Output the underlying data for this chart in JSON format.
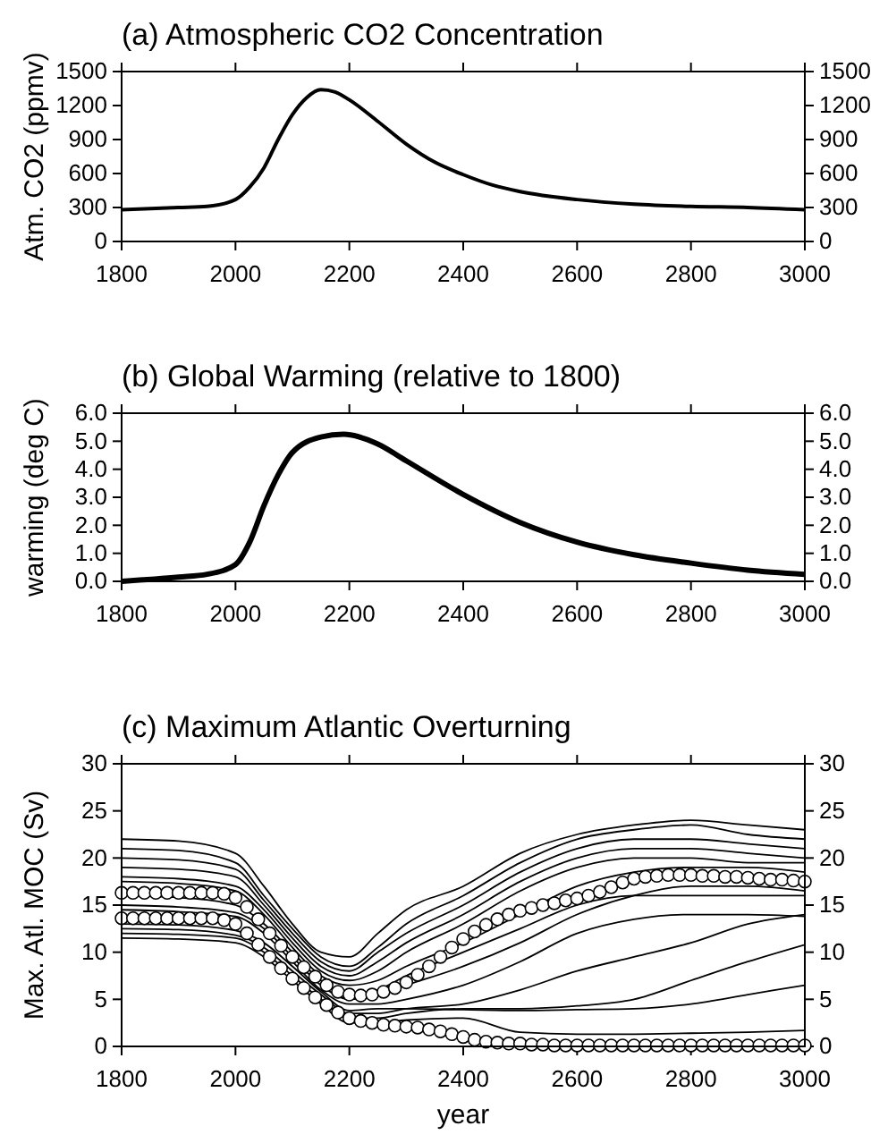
{
  "chart_data": [
    {
      "type": "line",
      "title": "(a) Atmospheric CO2 Concentration",
      "ylabel": "Atm. CO2 (ppmv)",
      "x": [
        1800,
        1900,
        1950,
        2000,
        2025,
        2050,
        2075,
        2100,
        2125,
        2150,
        2175,
        2200,
        2250,
        2300,
        2350,
        2400,
        2450,
        2500,
        2600,
        2700,
        2800,
        2900,
        3000
      ],
      "series": [
        {
          "color": "#000000",
          "values": [
            280,
            300,
            310,
            370,
            480,
            650,
            900,
            1120,
            1270,
            1340,
            1320,
            1250,
            1060,
            860,
            700,
            590,
            500,
            440,
            370,
            330,
            310,
            300,
            280
          ]
        }
      ],
      "xlim": [
        1800,
        3000
      ],
      "xticks": [
        1800,
        2000,
        2200,
        2400,
        2600,
        2800,
        3000
      ],
      "ylim": [
        0,
        1500
      ],
      "yticks": [
        0,
        300,
        600,
        900,
        1200,
        1500
      ],
      "y2lim": [
        0,
        1500
      ],
      "y2ticks": [
        0,
        300,
        600,
        900,
        1200,
        1500
      ],
      "grid": false
    },
    {
      "type": "line",
      "title": "(b) Global Warming (relative to 1800)",
      "ylabel": "warming (deg C)",
      "x": [
        1800,
        1900,
        1950,
        2000,
        2025,
        2050,
        2075,
        2100,
        2150,
        2190,
        2250,
        2300,
        2400,
        2500,
        2600,
        2700,
        2800,
        2900,
        3000
      ],
      "series": [
        {
          "color": "#000000",
          "values": [
            0,
            0.15,
            0.25,
            0.6,
            1.4,
            2.7,
            3.8,
            4.6,
            5.15,
            5.25,
            4.9,
            4.3,
            3.1,
            2.1,
            1.4,
            0.95,
            0.65,
            0.4,
            0.25
          ]
        }
      ],
      "xlim": [
        1800,
        3000
      ],
      "xticks": [
        1800,
        2000,
        2200,
        2400,
        2600,
        2800,
        3000
      ],
      "ylim": [
        0,
        6
      ],
      "yticks": [
        {
          "value": 0,
          "label": "0.0"
        },
        {
          "value": 1,
          "label": "1.0"
        },
        {
          "value": 2,
          "label": "2.0"
        },
        {
          "value": 3,
          "label": "3.0"
        },
        {
          "value": 4,
          "label": "4.0"
        },
        {
          "value": 5,
          "label": "5.0"
        },
        {
          "value": 6,
          "label": "6.0"
        }
      ],
      "y2lim": [
        0,
        6
      ],
      "y2ticks": [
        {
          "value": 0,
          "label": "0.0"
        },
        {
          "value": 1,
          "label": "1.0"
        },
        {
          "value": 2,
          "label": "2.0"
        },
        {
          "value": 3,
          "label": "3.0"
        },
        {
          "value": 4,
          "label": "4.0"
        },
        {
          "value": 5,
          "label": "5.0"
        },
        {
          "value": 6,
          "label": "6.0"
        }
      ],
      "grid": false
    },
    {
      "type": "line",
      "title": "(c) Maximum Atlantic Overturning",
      "ylabel": "Max. Atl. MOC (Sv)",
      "xlabel": "year",
      "series": [
        {
          "color": "#000000",
          "x": [
            1800,
            1900,
            2000,
            2050,
            2100,
            2150,
            2200,
            2250,
            2300,
            2400,
            2500,
            2600,
            2700,
            2800,
            2900,
            3000
          ],
          "values": [
            22,
            21.8,
            20.5,
            17,
            13,
            10,
            9.5,
            12,
            14.5,
            17,
            20.5,
            22.5,
            23.5,
            24,
            23.5,
            23
          ]
        },
        {
          "color": "#000000",
          "x": [
            1800,
            1900,
            2000,
            2050,
            2100,
            2150,
            2200,
            2250,
            2300,
            2400,
            2500,
            2600,
            2700,
            2800,
            2900,
            3000
          ],
          "values": [
            21,
            20.8,
            19.5,
            16,
            12.5,
            9.5,
            8.5,
            10.5,
            13,
            16,
            19.5,
            22,
            23,
            23.5,
            22.5,
            22
          ]
        },
        {
          "color": "#000000",
          "x": [
            1800,
            1900,
            2000,
            2050,
            2100,
            2150,
            2200,
            2250,
            2300,
            2400,
            2500,
            2600,
            2700,
            2800,
            2900,
            3000
          ],
          "values": [
            20,
            19.8,
            18.8,
            15.5,
            12,
            9,
            8,
            10,
            12,
            15,
            18.5,
            21,
            22,
            22,
            21.5,
            21
          ]
        },
        {
          "color": "#000000",
          "x": [
            1800,
            1900,
            2000,
            2050,
            2100,
            2150,
            2200,
            2250,
            2300,
            2400,
            2500,
            2600,
            2700,
            2800,
            2900,
            3000
          ],
          "values": [
            19,
            18.8,
            18,
            15,
            11.5,
            8.5,
            7.5,
            9,
            11,
            14,
            17.5,
            20,
            21,
            21,
            20.5,
            20
          ]
        },
        {
          "color": "#000000",
          "x": [
            1800,
            1900,
            2000,
            2050,
            2100,
            2150,
            2200,
            2250,
            2300,
            2400,
            2500,
            2600,
            2700,
            2800,
            2900,
            3000
          ],
          "values": [
            18,
            17.8,
            17,
            14.5,
            11,
            8,
            7,
            8,
            10,
            13,
            16.5,
            19,
            20,
            20,
            19.5,
            19.5
          ]
        },
        {
          "color": "#000000",
          "x": [
            1800,
            1900,
            2000,
            2050,
            2100,
            2150,
            2200,
            2250,
            2300,
            2400,
            2500,
            2600,
            2700,
            2800,
            2900,
            3000
          ],
          "values": [
            17.5,
            17.3,
            16.5,
            14,
            10.5,
            7.5,
            6.5,
            7,
            8.5,
            11,
            14,
            17,
            18.5,
            19,
            19,
            18.5
          ]
        },
        {
          "color": "#000000",
          "x": [
            1800,
            1900,
            2000,
            2050,
            2100,
            2150,
            2200,
            2250,
            2300,
            2400,
            2500,
            2600,
            2700,
            2800,
            2900,
            3000
          ],
          "values": [
            16,
            15.8,
            15,
            13,
            10,
            7,
            5.5,
            6,
            7.5,
            10,
            12.5,
            15,
            16,
            16,
            16,
            16
          ]
        },
        {
          "color": "#000000",
          "x": [
            1800,
            1900,
            2000,
            2050,
            2100,
            2150,
            2200,
            2250,
            2300,
            2400,
            2500,
            2600,
            2700,
            2800,
            2900,
            3000
          ],
          "values": [
            15,
            14.8,
            14.2,
            12.5,
            9.5,
            6.5,
            5,
            5.5,
            6.5,
            8.5,
            11,
            14,
            16,
            17,
            17,
            16.5
          ]
        },
        {
          "color": "#000000",
          "x": [
            1800,
            1900,
            2000,
            2050,
            2100,
            2150,
            2200,
            2250,
            2300,
            2400,
            2500,
            2600,
            2700,
            2800,
            2900,
            3000
          ],
          "values": [
            14.5,
            14.3,
            13.8,
            12,
            9,
            6,
            4.5,
            4.5,
            5,
            6.5,
            9,
            12,
            13.5,
            14,
            14,
            13.8
          ]
        },
        {
          "color": "#000000",
          "x": [
            1800,
            1900,
            2000,
            2050,
            2100,
            2150,
            2200,
            2250,
            2300,
            2400,
            2500,
            2600,
            2700,
            2800,
            2900,
            3000
          ],
          "values": [
            13,
            12.9,
            12.3,
            11,
            8.5,
            5.8,
            3.8,
            4,
            4,
            3.9,
            3.8,
            3.9,
            4,
            4.5,
            5.5,
            6.5
          ]
        },
        {
          "color": "#000000",
          "x": [
            1800,
            1900,
            2000,
            2050,
            2100,
            2150,
            2200,
            2250,
            2300,
            2400,
            2500,
            2600,
            2700,
            2800,
            2900,
            3000
          ],
          "values": [
            12.5,
            12.4,
            11.8,
            10.5,
            8,
            5.5,
            3.5,
            3.5,
            4,
            4.5,
            6,
            8,
            9.5,
            11,
            13,
            14
          ]
        },
        {
          "color": "#000000",
          "x": [
            1800,
            1900,
            2000,
            2050,
            2100,
            2150,
            2200,
            2250,
            2300,
            2400,
            2500,
            2600,
            2700,
            2800,
            2900,
            3000
          ],
          "values": [
            12,
            11.9,
            11.5,
            10,
            7.5,
            5,
            3,
            3,
            3.5,
            4,
            4,
            4.3,
            5,
            7,
            9,
            10.8
          ]
        },
        {
          "color": "#000000",
          "x": [
            1800,
            1900,
            2000,
            2050,
            2100,
            2150,
            2200,
            2250,
            2300,
            2400,
            2500,
            2600,
            2700,
            2800,
            2900,
            3000
          ],
          "values": [
            11.5,
            11.4,
            11,
            9.5,
            7,
            4.5,
            2.5,
            2.5,
            2.8,
            3,
            1.5,
            1.3,
            1.3,
            1.4,
            1.5,
            1.7
          ]
        },
        {
          "type": "scatter",
          "marker": "circle",
          "color": "#ffffff",
          "x": [
            1800,
            1820,
            1840,
            1860,
            1880,
            1900,
            1920,
            1940,
            1960,
            1980,
            2000,
            2020,
            2040,
            2060,
            2080,
            2100,
            2120,
            2140,
            2160,
            2180,
            2200,
            2220,
            2240,
            2260,
            2280,
            2300,
            2320,
            2340,
            2360,
            2380,
            2400,
            2420,
            2440,
            2460,
            2480,
            2500,
            2520,
            2540,
            2560,
            2580,
            2600,
            2620,
            2640,
            2660,
            2680,
            2700,
            2720,
            2740,
            2760,
            2780,
            2800,
            2820,
            2840,
            2860,
            2880,
            2900,
            2920,
            2940,
            2960,
            2980,
            3000
          ],
          "values": [
            16.3,
            16.3,
            16.3,
            16.3,
            16.3,
            16.3,
            16.3,
            16.3,
            16.3,
            16.2,
            15.8,
            14.8,
            13.5,
            12.0,
            10.7,
            9.5,
            8.4,
            7.4,
            6.5,
            5.8,
            5.5,
            5.4,
            5.5,
            5.8,
            6.2,
            6.8,
            7.6,
            8.5,
            9.5,
            10.5,
            11.4,
            12.2,
            12.9,
            13.5,
            14.0,
            14.4,
            14.7,
            15.0,
            15.2,
            15.5,
            15.7,
            16.0,
            16.4,
            16.9,
            17.4,
            17.8,
            18.0,
            18.1,
            18.2,
            18.2,
            18.2,
            18.1,
            18.1,
            18.0,
            18.0,
            17.9,
            17.8,
            17.7,
            17.7,
            17.6,
            17.5
          ]
        },
        {
          "type": "scatter",
          "marker": "circle",
          "color": "#ffffff",
          "x": [
            1800,
            1820,
            1840,
            1860,
            1880,
            1900,
            1920,
            1940,
            1960,
            1980,
            2000,
            2020,
            2040,
            2060,
            2080,
            2100,
            2120,
            2140,
            2160,
            2180,
            2200,
            2220,
            2240,
            2260,
            2280,
            2300,
            2320,
            2340,
            2360,
            2380,
            2400,
            2420,
            2440,
            2460,
            2480,
            2500,
            2520,
            2540,
            2560,
            2580,
            2600,
            2620,
            2640,
            2660,
            2680,
            2700,
            2720,
            2740,
            2760,
            2780,
            2800,
            2820,
            2840,
            2860,
            2880,
            2900,
            2920,
            2940,
            2960,
            2980,
            3000
          ],
          "values": [
            13.6,
            13.6,
            13.6,
            13.6,
            13.6,
            13.6,
            13.6,
            13.6,
            13.6,
            13.4,
            13.0,
            12.0,
            10.8,
            9.5,
            8.3,
            7.2,
            6.2,
            5.2,
            4.4,
            3.6,
            3.0,
            2.7,
            2.5,
            2.3,
            2.2,
            2.1,
            2.0,
            1.8,
            1.6,
            1.3,
            1.0,
            0.7,
            0.5,
            0.4,
            0.3,
            0.3,
            0.2,
            0.2,
            0.1,
            0.1,
            0.1,
            0.1,
            0.1,
            0.1,
            0.1,
            0.1,
            0.1,
            0.1,
            0.1,
            0.1,
            0.1,
            0.1,
            0.1,
            0.1,
            0.1,
            0.1,
            0.1,
            0.1,
            0.1,
            0.1,
            0.1
          ]
        }
      ],
      "xlim": [
        1800,
        3000
      ],
      "xticks": [
        1800,
        2000,
        2200,
        2400,
        2600,
        2800,
        3000
      ],
      "ylim": [
        0,
        30
      ],
      "yticks": [
        0,
        5,
        10,
        15,
        20,
        25,
        30
      ],
      "y2lim": [
        0,
        30
      ],
      "y2ticks": [
        0,
        5,
        10,
        15,
        20,
        25,
        30
      ],
      "grid": false
    }
  ]
}
